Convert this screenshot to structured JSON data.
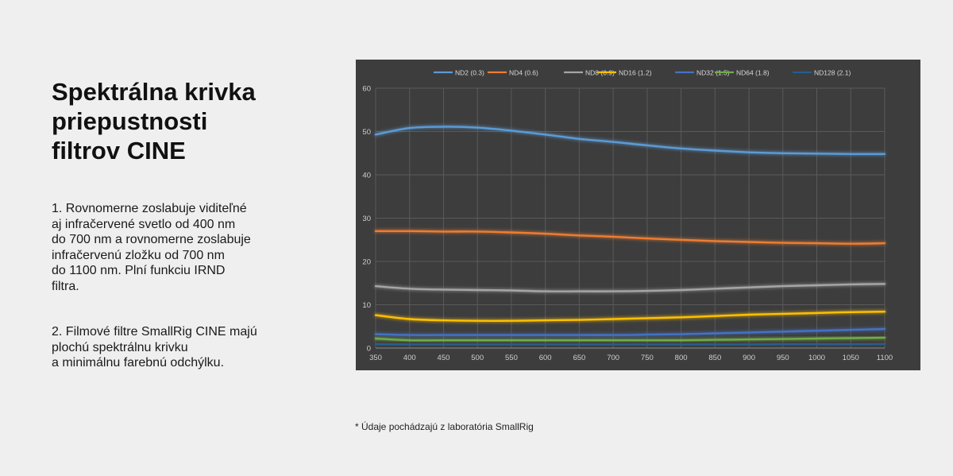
{
  "heading": {
    "lines": [
      "Spektrálna krivka",
      "priepustnosti",
      "filtrov CINE"
    ]
  },
  "paragraph1": {
    "lines": [
      "1. Rovnomerne zoslabuje viditeľné",
      "aj infračervené svetlo od 400 nm",
      "do 700 nm a rovnomerne zoslabuje",
      "infračervenú zložku od 700 nm",
      "do 1100 nm. Plní funkciu IRND",
      "filtra."
    ]
  },
  "paragraph2": {
    "lines": [
      "2. Filmové filtre SmallRig CINE majú",
      "plochú spektrálnu krivku",
      "a minimálnu farebnú odchýlku."
    ]
  },
  "footnote": "* Údaje pochádzajú z laboratória SmallRig",
  "chart_data": {
    "type": "line",
    "title": "",
    "xlabel": "",
    "ylabel": "",
    "xlim": [
      350,
      1100
    ],
    "ylim": [
      0,
      60
    ],
    "x_ticks": [
      "350",
      "400",
      "450",
      "500",
      "550",
      "600",
      "650",
      "700",
      "750",
      "800",
      "850",
      "900",
      "950",
      "1000",
      "1050",
      "1100"
    ],
    "y_ticks": [
      "0",
      "10",
      "20",
      "30",
      "40",
      "50",
      "60"
    ],
    "grid": true,
    "legend_position": "top",
    "background_color": "#3d3d3d",
    "x": [
      350,
      400,
      450,
      500,
      550,
      600,
      650,
      700,
      750,
      800,
      850,
      900,
      950,
      1000,
      1050,
      1100
    ],
    "series": [
      {
        "name": "ND2 (0.3)",
        "color": "#5b9bd5",
        "values": [
          49.3,
          50.8,
          51.1,
          50.9,
          50.2,
          49.3,
          48.3,
          47.6,
          46.8,
          46.1,
          45.6,
          45.2,
          45.0,
          44.9,
          44.8,
          44.8
        ]
      },
      {
        "name": "ND4 (0.6)",
        "color": "#ed7d31",
        "values": [
          27.0,
          27.0,
          26.9,
          26.9,
          26.7,
          26.4,
          26.0,
          25.7,
          25.3,
          25.0,
          24.7,
          24.5,
          24.3,
          24.2,
          24.1,
          24.2
        ]
      },
      {
        "name": "ND8 (0.9)",
        "color": "#a5a5a5",
        "values": [
          14.3,
          13.7,
          13.5,
          13.4,
          13.3,
          13.1,
          13.1,
          13.1,
          13.2,
          13.4,
          13.7,
          14.0,
          14.3,
          14.5,
          14.7,
          14.8
        ]
      },
      {
        "name": "ND16 (1.2)",
        "color": "#ffc000",
        "values": [
          7.6,
          6.7,
          6.4,
          6.3,
          6.3,
          6.4,
          6.5,
          6.7,
          6.9,
          7.1,
          7.4,
          7.7,
          7.9,
          8.1,
          8.3,
          8.4
        ]
      },
      {
        "name": "ND32 (1.5)",
        "color": "#4472c4",
        "values": [
          3.2,
          3.0,
          3.0,
          3.0,
          3.0,
          3.0,
          3.0,
          3.0,
          3.1,
          3.2,
          3.4,
          3.6,
          3.8,
          4.0,
          4.2,
          4.4
        ]
      },
      {
        "name": "ND64 (1.8)",
        "color": "#70ad47",
        "values": [
          2.2,
          1.8,
          1.8,
          1.8,
          1.8,
          1.8,
          1.8,
          1.8,
          1.8,
          1.8,
          1.9,
          2.0,
          2.1,
          2.2,
          2.3,
          2.4
        ]
      },
      {
        "name": "ND128 (2.1)",
        "color": "#255e91",
        "values": [
          0.9,
          0.8,
          0.8,
          0.8,
          0.8,
          0.8,
          0.8,
          0.8,
          0.8,
          0.8,
          0.8,
          0.8,
          0.9,
          0.9,
          0.9,
          1.0
        ]
      }
    ]
  }
}
